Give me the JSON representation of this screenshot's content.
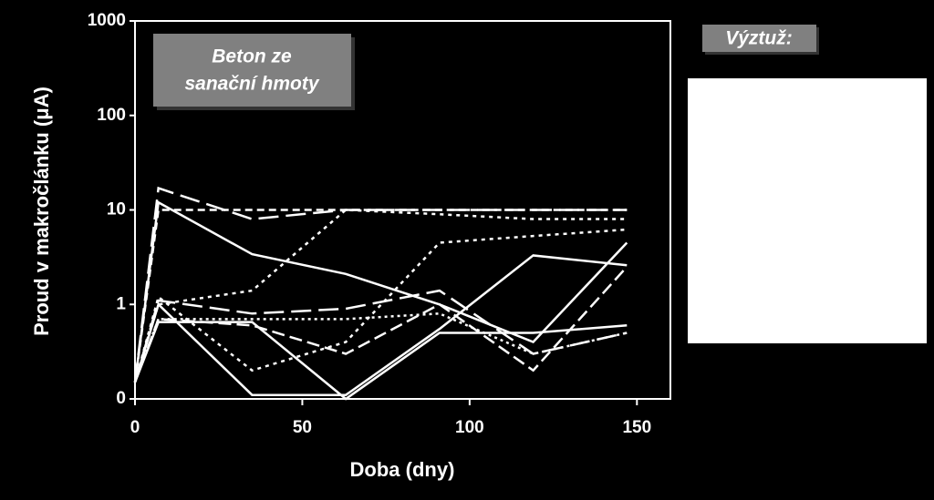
{
  "chart_data": {
    "type": "line",
    "x_label": "Doba (dny)",
    "y_label": "Proud v makročlánku (μA)",
    "annotations": [
      "Beton ze",
      "sanační hmoty"
    ],
    "legend_title": "Výztuž:",
    "log_y": true,
    "xlim": [
      0,
      160
    ],
    "ylim": [
      0.1,
      1000
    ],
    "xticks": [
      0,
      50,
      100,
      150
    ],
    "yticks": [
      {
        "value": 0.1,
        "label": "0"
      },
      1,
      10,
      100,
      1000
    ],
    "x": [
      0,
      7,
      35,
      63,
      91,
      119,
      147
    ],
    "series": [
      {
        "color": "#ffffff",
        "dash": "none",
        "values": [
          0.15,
          12,
          3.4,
          2.1,
          1.0,
          0.4,
          4.5
        ]
      },
      {
        "color": "#ffffff",
        "dash": "none",
        "values": [
          0.15,
          1.0,
          0.11,
          0.11,
          0.55,
          3.3,
          2.6
        ]
      },
      {
        "color": "#ffffff",
        "dash": "none",
        "values": [
          0.15,
          0.65,
          0.65,
          0.1,
          0.5,
          0.5,
          0.6
        ]
      },
      {
        "color": "#ffffff",
        "dash": "22,8",
        "values": [
          0.15,
          17,
          8,
          10,
          10,
          10,
          10
        ]
      },
      {
        "color": "#ffffff",
        "dash": "14,6",
        "values": [
          0.15,
          0.7,
          0.6,
          0.3,
          1.0,
          0.2,
          2.5
        ]
      },
      {
        "color": "#ffffff",
        "dash": "4,5",
        "values": [
          0.15,
          1.0,
          1.4,
          10,
          9,
          8,
          8
        ]
      },
      {
        "color": "#ffffff",
        "dash": "4,5",
        "values": [
          0.15,
          1.2,
          0.2,
          0.4,
          4.5,
          5.3,
          6.2
        ]
      },
      {
        "color": "#ffffff",
        "dash": "8,5",
        "values": [
          0.15,
          10,
          10,
          10,
          10,
          10,
          10
        ]
      },
      {
        "color": "#ffffff",
        "dash": "22,8",
        "values": [
          0.15,
          1.1,
          0.8,
          0.9,
          1.4,
          0.3,
          0.5
        ]
      },
      {
        "color": "#ffffff",
        "dash": "3,4",
        "values": [
          0.15,
          0.7,
          0.7,
          0.7,
          0.8,
          0.3,
          0.5
        ]
      }
    ]
  }
}
